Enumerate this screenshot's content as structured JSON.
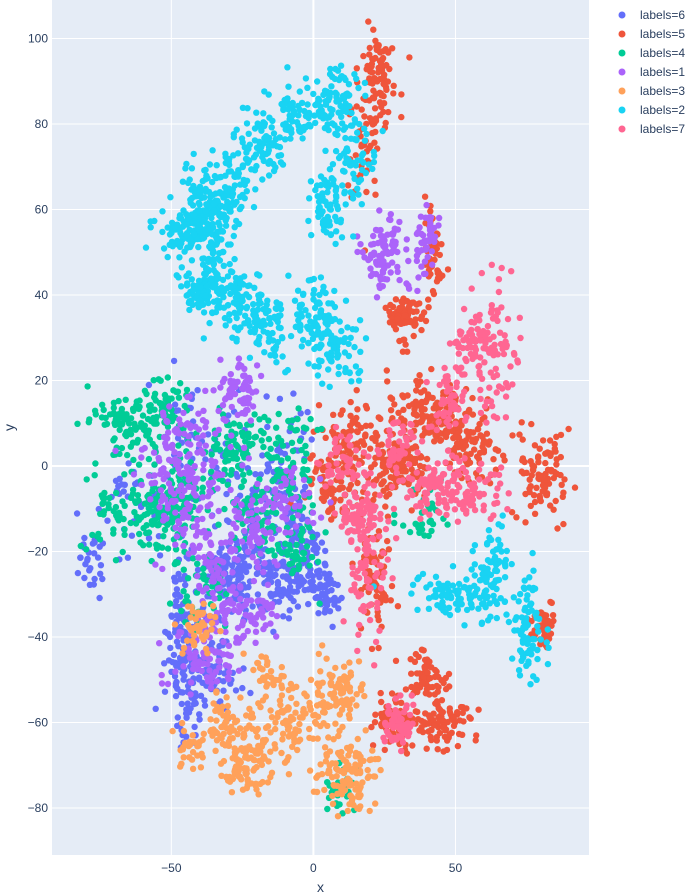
{
  "chart_data": {
    "type": "scatter",
    "xlabel": "x",
    "ylabel": "y",
    "xlim": [
      -92,
      97
    ],
    "ylim": [
      -91,
      109
    ],
    "x_ticks": [
      -50,
      0,
      50
    ],
    "x_tick_labels": [
      "−50",
      "0",
      "50"
    ],
    "y_ticks": [
      -80,
      -60,
      -40,
      -20,
      0,
      20,
      40,
      60,
      80,
      100
    ],
    "y_tick_labels": [
      "−80",
      "−60",
      "−40",
      "−20",
      "0",
      "20",
      "40",
      "60",
      "80",
      "100"
    ],
    "grid": true,
    "legend_position": "right",
    "plot_background": "#E5ECF6",
    "series": [
      {
        "name": "labels=6",
        "color": "#636EFA",
        "clusters": [
          [
            -45,
            -38,
            4,
            9,
            1,
            0.6
          ],
          [
            -28,
            -26,
            5,
            5,
            2,
            0.8
          ],
          [
            -12,
            -27,
            5,
            4,
            3,
            0.5
          ],
          [
            -3,
            -22,
            3,
            5,
            4,
            0.4
          ],
          [
            -45,
            -52,
            3,
            7,
            5,
            0.4
          ],
          [
            -35,
            -48,
            4,
            4,
            6,
            0.4
          ],
          [
            -10,
            -5,
            5,
            10,
            7,
            0.5
          ],
          [
            -40,
            5,
            8,
            8,
            8,
            0.4
          ],
          [
            -22,
            -10,
            6,
            6,
            9,
            0.4
          ],
          [
            -62,
            -8,
            6,
            6,
            10,
            0.2
          ],
          [
            -78,
            -22,
            3,
            5,
            11,
            0.2
          ],
          [
            5,
            -30,
            3,
            3,
            12,
            0.3
          ]
        ]
      },
      {
        "name": "labels=5",
        "color": "#EF553B",
        "clusters": [
          [
            23,
            90,
            3,
            6,
            1,
            0.5
          ],
          [
            18,
            75,
            3,
            8,
            2,
            0.3
          ],
          [
            32,
            35,
            3,
            3,
            3,
            0.5
          ],
          [
            38,
            13,
            8,
            4,
            4,
            0.6
          ],
          [
            30,
            0,
            5,
            4,
            5,
            0.8
          ],
          [
            55,
            5,
            6,
            4,
            6,
            0.5
          ],
          [
            80,
            -2,
            5,
            5,
            7,
            0.6
          ],
          [
            13,
            5,
            5,
            5,
            8,
            0.6
          ],
          [
            6,
            -5,
            5,
            5,
            9,
            0.5
          ],
          [
            22,
            -25,
            3,
            10,
            10,
            0.5
          ],
          [
            40,
            -50,
            3,
            3,
            11,
            0.4
          ],
          [
            45,
            -60,
            5,
            3,
            12,
            0.6
          ],
          [
            28,
            -60,
            4,
            3,
            13,
            0.5
          ],
          [
            80,
            -38,
            2,
            3,
            14,
            0.3
          ],
          [
            42,
            50,
            2,
            5,
            15,
            0.3
          ],
          [
            48,
            10,
            6,
            4,
            16,
            0.4
          ]
        ]
      },
      {
        "name": "labels=4",
        "color": "#00CC96",
        "clusters": [
          [
            -65,
            10,
            6,
            4,
            1,
            0.6
          ],
          [
            -52,
            13,
            4,
            4,
            2,
            0.4
          ],
          [
            -48,
            -8,
            6,
            5,
            3,
            0.6
          ],
          [
            -55,
            -12,
            6,
            4,
            4,
            0.5
          ],
          [
            -28,
            4,
            5,
            4,
            5,
            0.5
          ],
          [
            -10,
            2,
            6,
            6,
            6,
            0.5
          ],
          [
            -40,
            -30,
            6,
            5,
            7,
            0.3
          ],
          [
            -70,
            -10,
            5,
            6,
            8,
            0.3
          ],
          [
            -20,
            -12,
            6,
            6,
            9,
            0.4
          ],
          [
            -5,
            -20,
            5,
            5,
            10,
            0.3
          ],
          [
            10,
            -77,
            3,
            3,
            11,
            0.2
          ],
          [
            40,
            -12,
            6,
            4,
            12,
            0.2
          ]
        ]
      },
      {
        "name": "labels=1",
        "color": "#AB63FA",
        "clusters": [
          [
            25,
            50,
            4,
            4,
            1,
            0.6
          ],
          [
            -40,
            5,
            6,
            6,
            2,
            0.5
          ],
          [
            -25,
            18,
            3,
            3,
            3,
            0.4
          ],
          [
            -27,
            -35,
            8,
            4,
            4,
            0.6
          ],
          [
            -38,
            -45,
            6,
            4,
            5,
            0.5
          ],
          [
            -45,
            -10,
            6,
            6,
            6,
            0.5
          ],
          [
            -20,
            -15,
            4,
            5,
            7,
            0.4
          ],
          [
            -50,
            0,
            6,
            5,
            8,
            0.3
          ],
          [
            -8,
            -8,
            5,
            4,
            9,
            0.3
          ],
          [
            -32,
            -22,
            4,
            4,
            10,
            0.3
          ],
          [
            40,
            52,
            2,
            4,
            11,
            0.3
          ]
        ]
      },
      {
        "name": "labels=3",
        "color": "#FFA15A",
        "clusters": [
          [
            12,
            -72,
            6,
            5,
            1,
            0.8
          ],
          [
            10,
            -52,
            4,
            4,
            2,
            0.5
          ],
          [
            -5,
            -58,
            6,
            4,
            3,
            0.5
          ],
          [
            -20,
            -65,
            7,
            4,
            4,
            0.6
          ],
          [
            -25,
            -72,
            3,
            3,
            5,
            0.3
          ],
          [
            -42,
            -66,
            3,
            3,
            6,
            0.2
          ],
          [
            -32,
            -60,
            3,
            3,
            7,
            0.3
          ],
          [
            -15,
            -48,
            3,
            3,
            8,
            0.2
          ],
          [
            -40,
            -38,
            3,
            3,
            9,
            0.3
          ]
        ]
      },
      {
        "name": "labels=2",
        "color": "#19D3F3",
        "clusters": [
          [
            -45,
            55,
            6,
            3,
            1,
            0.5
          ],
          [
            -35,
            58,
            4,
            4,
            2,
            0.5
          ],
          [
            -30,
            65,
            6,
            5,
            3,
            0.5
          ],
          [
            -18,
            75,
            5,
            4,
            4,
            0.5
          ],
          [
            -5,
            82,
            6,
            3,
            5,
            0.5
          ],
          [
            7,
            86,
            4,
            4,
            6,
            0.4
          ],
          [
            13,
            70,
            4,
            6,
            7,
            0.5
          ],
          [
            5,
            60,
            3,
            4,
            8,
            0.4
          ],
          [
            -35,
            45,
            5,
            4,
            9,
            0.5
          ],
          [
            -28,
            38,
            6,
            4,
            10,
            0.5
          ],
          [
            -15,
            32,
            6,
            4,
            11,
            0.5
          ],
          [
            0,
            35,
            5,
            4,
            12,
            0.5
          ],
          [
            8,
            27,
            4,
            4,
            13,
            0.5
          ],
          [
            -40,
            40,
            3,
            3,
            14,
            0.3
          ],
          [
            50,
            -30,
            7,
            3,
            15,
            0.6
          ],
          [
            63,
            -25,
            3,
            6,
            16,
            0.5
          ],
          [
            76,
            -40,
            3,
            6,
            17,
            0.5
          ],
          [
            -42,
            60,
            3,
            5,
            18,
            0.3
          ]
        ]
      },
      {
        "name": "labels=7",
        "color": "#FF6692",
        "clusters": [
          [
            63,
            27,
            4,
            8,
            1,
            0.6
          ],
          [
            55,
            30,
            3,
            3,
            2,
            0.3
          ],
          [
            20,
            -20,
            4,
            10,
            3,
            0.6
          ],
          [
            15,
            -12,
            3,
            3,
            4,
            0.4
          ],
          [
            42,
            -5,
            6,
            3,
            5,
            0.6
          ],
          [
            55,
            -7,
            6,
            3,
            6,
            0.4
          ],
          [
            30,
            -60,
            3,
            3,
            7,
            0.4
          ],
          [
            10,
            1,
            4,
            3,
            8,
            0.3
          ],
          [
            48,
            15,
            3,
            4,
            9,
            0.3
          ],
          [
            30,
            5,
            3,
            3,
            10,
            0.3
          ]
        ]
      }
    ]
  }
}
